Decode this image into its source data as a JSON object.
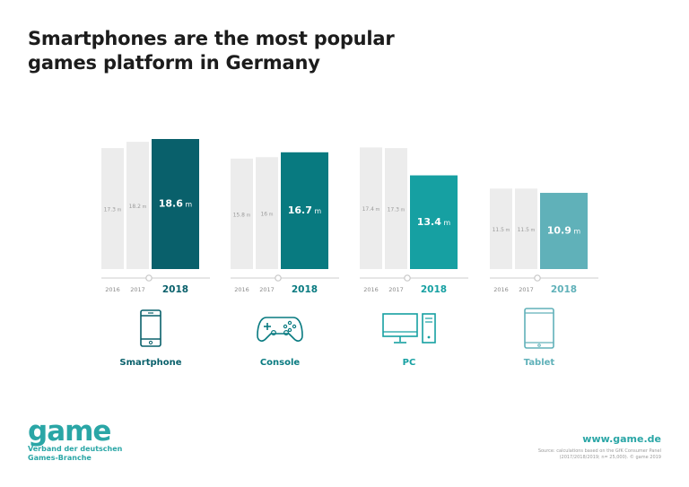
{
  "title": "Smartphones are the most popular games platform in Germany",
  "chart_data": {
    "type": "bar",
    "unit": "m",
    "years": [
      "2016",
      "2017",
      "2018"
    ],
    "groups": [
      {
        "name": "Smartphone",
        "values": [
          17.3,
          18.2,
          18.6
        ],
        "labels": [
          "17.3",
          "18.2",
          "18.6"
        ],
        "highlight_color": "#09606b",
        "icon": "smartphone-icon"
      },
      {
        "name": "Console",
        "values": [
          15.8,
          16.0,
          16.7
        ],
        "labels": [
          "15.8",
          "16",
          "16.7"
        ],
        "highlight_color": "#087a80",
        "icon": "gamepad-icon"
      },
      {
        "name": "PC",
        "values": [
          17.4,
          17.3,
          13.4
        ],
        "labels": [
          "17.4",
          "17.3",
          "13.4"
        ],
        "highlight_color": "#16a0a2",
        "icon": "desktop-pc-icon"
      },
      {
        "name": "Tablet",
        "values": [
          11.5,
          11.5,
          10.9
        ],
        "labels": [
          "11.5",
          "11.5",
          "10.9"
        ],
        "highlight_color": "#60b1b9",
        "icon": "tablet-icon"
      }
    ],
    "ylim": [
      0,
      18.6
    ],
    "grid": false,
    "legend": "none"
  },
  "colors": {
    "past_bar": "#ececec",
    "past_text": "#9b9b9b",
    "accent": "#2aa6a6"
  },
  "footer": {
    "logo": "game",
    "logo_sub_1": "Verband der deutschen",
    "logo_sub_2": "Games-Branche",
    "website": "www.game.de",
    "source_1": "Source: calculations based on the GfK Consumer Panel",
    "source_2": "(2017/2018/2019; n= 25,000). © game 2019"
  }
}
